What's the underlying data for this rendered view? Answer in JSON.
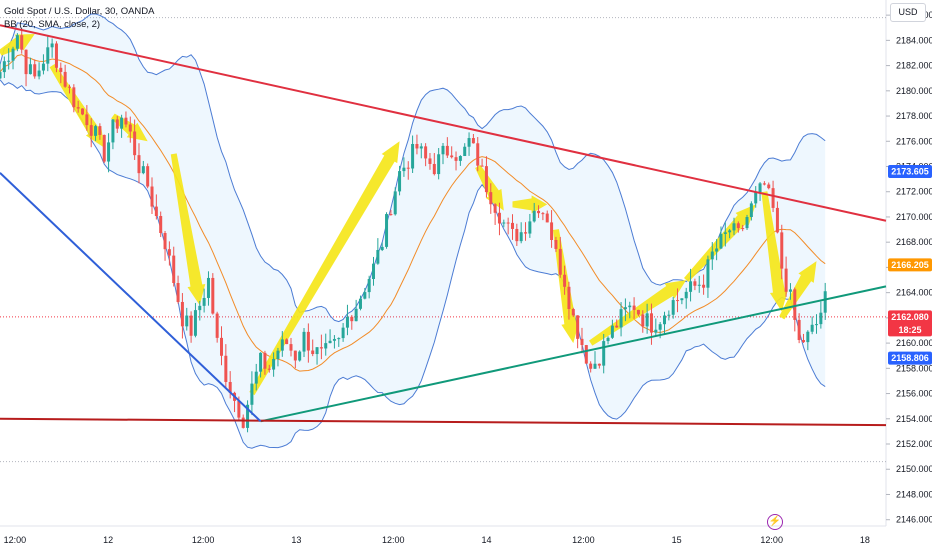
{
  "legend": {
    "symbol": "Gold Spot / U.S. Dollar, 30, OANDA",
    "indicator": "BB (20, SMA, close, 2)"
  },
  "currency_button": "USD",
  "bolt_icon": "⚡",
  "chart_data": {
    "type": "candlestick",
    "ylim": [
      2145.5,
      2187.2
    ],
    "y_ticks": [
      "2146.000",
      "2148.000",
      "2150.000",
      "2152.000",
      "2154.000",
      "2156.000",
      "2158.000",
      "2160.000",
      "2162.000",
      "2164.000",
      "2166.000",
      "2168.000",
      "2170.000",
      "2172.000",
      "2174.000",
      "2176.000",
      "2178.000",
      "2180.000",
      "2182.000",
      "2184.000",
      "2186.000"
    ],
    "x_ticks": [
      {
        "label": "12:00",
        "pos": 0.016
      },
      {
        "label": "12",
        "pos": 0.116
      },
      {
        "label": "12:00",
        "pos": 0.218
      },
      {
        "label": "13",
        "pos": 0.318
      },
      {
        "label": "12:00",
        "pos": 0.422
      },
      {
        "label": "14",
        "pos": 0.522
      },
      {
        "label": "12:00",
        "pos": 0.626
      },
      {
        "label": "15",
        "pos": 0.726
      },
      {
        "label": "12:00",
        "pos": 0.828
      },
      {
        "label": "18",
        "pos": 0.928
      }
    ],
    "close_path": [
      [
        0,
        2181.5
      ],
      [
        2,
        2183
      ],
      [
        4,
        2184.5
      ],
      [
        6,
        2182
      ],
      [
        8,
        2181
      ],
      [
        10,
        2182.5
      ],
      [
        12,
        2183.5
      ],
      [
        14,
        2181.5
      ],
      [
        16,
        2180
      ],
      [
        18,
        2178.5
      ],
      [
        20,
        2177.8
      ],
      [
        22,
        2176.5
      ],
      [
        24,
        2175
      ],
      [
        26,
        2177
      ],
      [
        28,
        2178
      ],
      [
        30,
        2176.5
      ],
      [
        32,
        2174
      ],
      [
        34,
        2172.5
      ],
      [
        36,
        2170
      ],
      [
        38,
        2168
      ],
      [
        40,
        2165
      ],
      [
        42,
        2162
      ],
      [
        44,
        2161
      ],
      [
        46,
        2163
      ],
      [
        48,
        2165
      ],
      [
        50,
        2160
      ],
      [
        52,
        2157.5
      ],
      [
        54,
        2155.5
      ],
      [
        56,
        2154
      ],
      [
        58,
        2156.5
      ],
      [
        60,
        2158.5
      ],
      [
        62,
        2158
      ],
      [
        64,
        2159.5
      ],
      [
        66,
        2160
      ],
      [
        68,
        2159
      ],
      [
        70,
        2160.5
      ],
      [
        72,
        2159.5
      ],
      [
        74,
        2159
      ],
      [
        76,
        2159.5
      ],
      [
        78,
        2160
      ],
      [
        80,
        2162
      ],
      [
        82,
        2163
      ],
      [
        84,
        2164.5
      ],
      [
        86,
        2166
      ],
      [
        88,
        2168
      ],
      [
        90,
        2171
      ],
      [
        92,
        2173.5
      ],
      [
        94,
        2174.5
      ],
      [
        96,
        2175.5
      ],
      [
        98,
        2174.5
      ],
      [
        100,
        2174
      ],
      [
        102,
        2175
      ],
      [
        104,
        2175.5
      ],
      [
        106,
        2174.5
      ],
      [
        108,
        2176
      ],
      [
        110,
        2174.5
      ],
      [
        112,
        2172.5
      ],
      [
        114,
        2171
      ],
      [
        116,
        2169.5
      ],
      [
        118,
        2168.5
      ],
      [
        120,
        2168.8
      ],
      [
        122,
        2170
      ],
      [
        124,
        2171
      ],
      [
        126,
        2170
      ],
      [
        128,
        2167
      ],
      [
        130,
        2165
      ],
      [
        132,
        2162
      ],
      [
        134,
        2160
      ],
      [
        136,
        2158
      ],
      [
        138,
        2159
      ],
      [
        140,
        2160.5
      ],
      [
        142,
        2161.5
      ],
      [
        144,
        2162.5
      ],
      [
        146,
        2163
      ],
      [
        148,
        2162
      ],
      [
        150,
        2161.5
      ],
      [
        152,
        2162
      ],
      [
        154,
        2163
      ],
      [
        156,
        2163.5
      ],
      [
        158,
        2164
      ],
      [
        160,
        2164.5
      ],
      [
        162,
        2165
      ],
      [
        164,
        2167
      ],
      [
        166,
        2168
      ],
      [
        168,
        2169
      ],
      [
        170,
        2168.5
      ],
      [
        172,
        2170
      ],
      [
        174,
        2171.5
      ],
      [
        176,
        2172.5
      ],
      [
        178,
        2170.5
      ],
      [
        180,
        2166
      ],
      [
        182,
        2163.5
      ],
      [
        184,
        2160
      ],
      [
        186,
        2160.5
      ],
      [
        188,
        2161.5
      ],
      [
        190,
        2163.5
      ]
    ],
    "current_price": "2162.080",
    "countdown": "18:25",
    "bb_upper_tag": "2173.605",
    "bb_middle_tag": "2166.205",
    "bb_lower_tag": "2158.806",
    "trendlines": {
      "upper_red": [
        [
          0,
          2185.2
        ],
        [
          204,
          2169.7
        ]
      ],
      "lower_green": [
        [
          60,
          2153.8
        ],
        [
          204,
          2164.5
        ]
      ],
      "support_dark_red": [
        [
          0,
          2154
        ],
        [
          204,
          2153.5
        ]
      ],
      "blue_descending": [
        [
          0,
          2173.5
        ],
        [
          60,
          2153.8
        ]
      ]
    },
    "colors": {
      "up": "#26a69a",
      "down": "#ef5350",
      "bb": "#4c7cd4",
      "basis": "#f28c28",
      "arrow": "#f5e61a",
      "tag_red": "#f23645",
      "tag_blue": "#2962ff",
      "tag_orange": "#ff9800"
    }
  }
}
